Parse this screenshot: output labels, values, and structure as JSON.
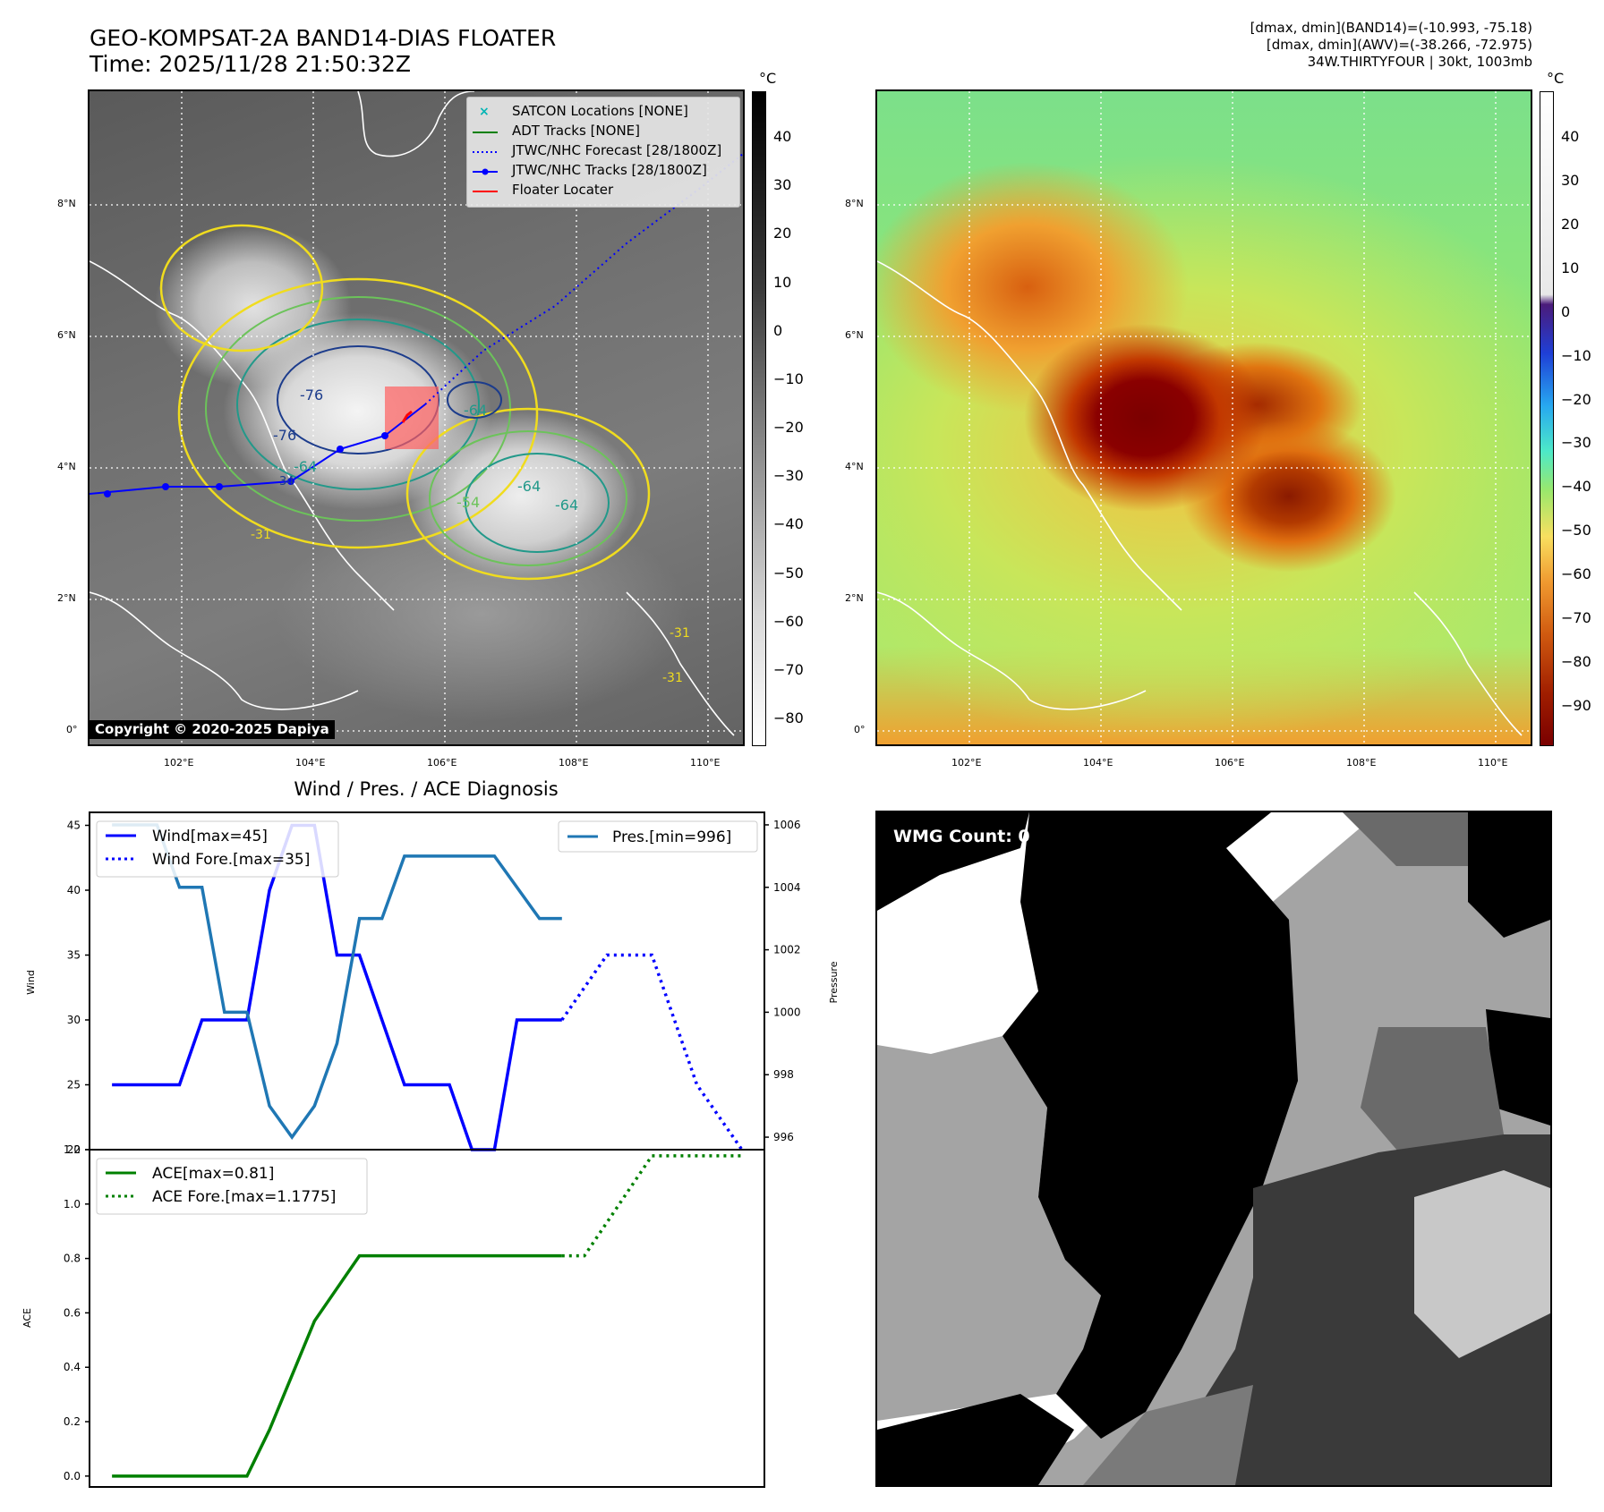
{
  "header": {
    "title_line1": "GEO-KOMPSAT-2A BAND14-DIAS FLOATER",
    "title_line2": "Time: 2025/11/28 21:50:32Z",
    "meta_line1": "[dmax, dmin](BAND14)=(-10.993, -75.18)",
    "meta_line2": "[dmax, dmin](AWV)=(-38.266, -72.975)",
    "meta_line3": "34W.THIRTYFOUR | 30kt, 1003mb"
  },
  "map": {
    "lat_labels": [
      "8°N",
      "6°N",
      "4°N",
      "2°N",
      "0°"
    ],
    "lon_labels": [
      "102°E",
      "104°E",
      "106°E",
      "108°E",
      "110°E"
    ],
    "copyright": "Copyright © 2020-2025 Dapiya",
    "legend": [
      {
        "label": "SATCON Locations [NONE]",
        "color": "#00b4b4",
        "style": "x-marker"
      },
      {
        "label": "ADT Tracks [NONE]",
        "color": "#008000",
        "style": "solid"
      },
      {
        "label": "JTWC/NHC Forecast [28/1800Z]",
        "color": "#0000ff",
        "style": "dotted"
      },
      {
        "label": "JTWC/NHC Tracks [28/1800Z]",
        "color": "#0000ff",
        "style": "solid-dot"
      },
      {
        "label": "Floater Locater",
        "color": "#ff0000",
        "style": "solid"
      }
    ],
    "contour_labels": [
      "-76",
      "-76",
      "-64",
      "-64",
      "-64",
      "-64",
      "-54",
      "-31",
      "-31",
      "-31"
    ],
    "track_labels": [
      "34"
    ]
  },
  "colorbar_ir": {
    "unit": "°C",
    "ticks": [
      "40",
      "30",
      "20",
      "10",
      "0",
      "−10",
      "−20",
      "−30",
      "−40",
      "−50",
      "−60",
      "−70",
      "−80"
    ]
  },
  "colorbar_awv": {
    "unit": "°C",
    "ticks": [
      "40",
      "30",
      "20",
      "10",
      "0",
      "−10",
      "−20",
      "−30",
      "−40",
      "−50",
      "−60",
      "−70",
      "−80",
      "−90"
    ]
  },
  "wmg": {
    "title": "WMG Count: 0"
  },
  "colors": {
    "wind": "#0000ff",
    "pressure": "#1f77b4",
    "ace": "#008000",
    "floater": "#ff0000"
  },
  "chart_data": [
    {
      "type": "line",
      "title": "Wind / Pres. / ACE Diagnosis",
      "ylabel": "Wind",
      "y2label": "Pressure",
      "ylim": [
        20,
        46
      ],
      "y2lim": [
        995.6,
        1006.4
      ],
      "yticks": [
        20,
        25,
        30,
        35,
        40,
        45
      ],
      "y2ticks": [
        996,
        998,
        1000,
        1002,
        1004,
        1006
      ],
      "xlim": [
        -1,
        29
      ],
      "series": [
        {
          "name": "Wind[max=45]",
          "axis": "left",
          "style": "solid",
          "color": "#0000ff",
          "x": [
            0,
            3,
            4,
            5,
            6,
            7,
            8,
            9,
            10,
            11,
            12,
            13,
            14,
            15,
            16,
            17,
            18,
            19,
            20
          ],
          "y": [
            25,
            25,
            30,
            30,
            30,
            40,
            45,
            45,
            35,
            35,
            30,
            25,
            25,
            25,
            20,
            20,
            30,
            30,
            30
          ]
        },
        {
          "name": "Wind Fore.[max=35]",
          "axis": "left",
          "style": "dotted",
          "color": "#0000ff",
          "x": [
            20,
            22,
            24,
            26,
            28
          ],
          "y": [
            30,
            35,
            35,
            25,
            20
          ]
        },
        {
          "name": "Pres.[min=996]",
          "axis": "right",
          "style": "solid",
          "color": "#1f77b4",
          "x": [
            0,
            1,
            2,
            3,
            4,
            5,
            6,
            7,
            8,
            9,
            10,
            11,
            12,
            13,
            14,
            15,
            16,
            17,
            18,
            19,
            20
          ],
          "y": [
            1006,
            1006,
            1006,
            1004,
            1004,
            1000,
            1000,
            997,
            996,
            997,
            999,
            1003,
            1003,
            1005,
            1005,
            1005,
            1005,
            1005,
            1004,
            1003,
            1003
          ]
        }
      ]
    },
    {
      "type": "line",
      "ylabel": "ACE",
      "ylim": [
        -0.04,
        1.2
      ],
      "yticks": [
        0.0,
        0.2,
        0.4,
        0.6,
        0.8,
        1.0,
        1.2
      ],
      "xlim": [
        -1,
        29
      ],
      "series": [
        {
          "name": "ACE[max=0.81]",
          "style": "solid",
          "color": "#008000",
          "x": [
            0,
            6,
            7,
            8,
            9,
            10,
            11,
            20
          ],
          "y": [
            0.0,
            0.0,
            0.17,
            0.37,
            0.57,
            0.69,
            0.81,
            0.81
          ]
        },
        {
          "name": "ACE Fore.[max=1.1775]",
          "style": "dotted",
          "color": "#008000",
          "x": [
            20,
            21,
            24,
            28
          ],
          "y": [
            0.81,
            0.81,
            1.1775,
            1.1775
          ]
        }
      ]
    }
  ]
}
